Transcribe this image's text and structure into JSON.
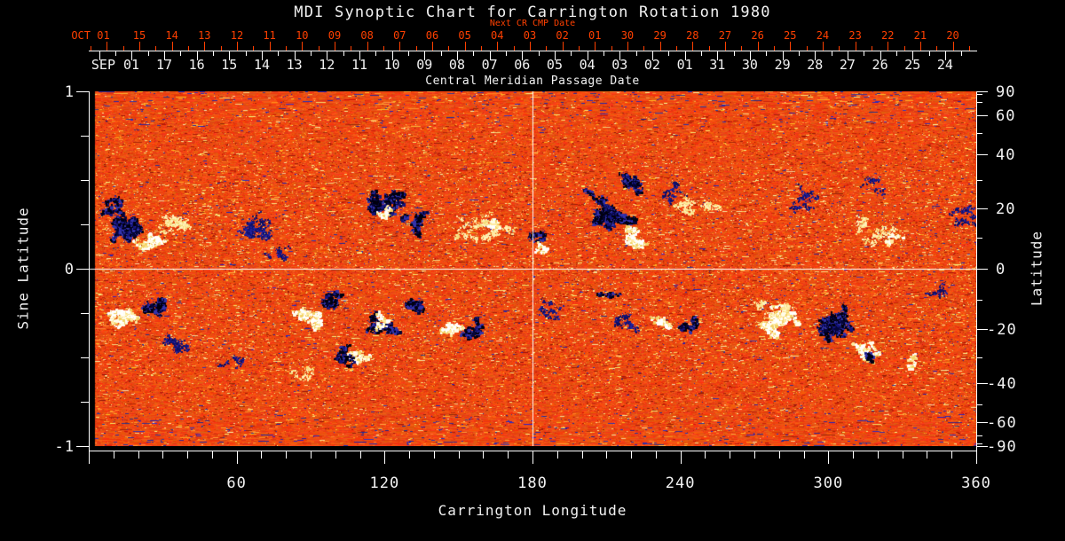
{
  "title": "MDI Synoptic Chart for Carrington Rotation 1980",
  "colors": {
    "background": "#000000",
    "axis": "#ffffff",
    "accent_orange": "#ff4000",
    "base_orange": "#e8481a",
    "negative_polarity": "#000020",
    "positive_polarity": "#ffffff"
  },
  "top_axis": {
    "next_cr_label": "Next CR CMP Date",
    "next_cr_edge_label": "OCT 01",
    "next_cr_days": [
      "15",
      "14",
      "13",
      "12",
      "11",
      "10",
      "09",
      "08",
      "07",
      "06",
      "05",
      "04",
      "03",
      "02",
      "01",
      "30",
      "29",
      "28",
      "27",
      "26",
      "25",
      "24",
      "23",
      "22",
      "21",
      "20"
    ],
    "cmp_edge_label": "SEP 01",
    "cmp_days": [
      "17",
      "16",
      "15",
      "14",
      "13",
      "12",
      "11",
      "10",
      "09",
      "08",
      "07",
      "06",
      "05",
      "04",
      "03",
      "02",
      "01",
      "31",
      "30",
      "29",
      "28",
      "27",
      "26",
      "25",
      "24"
    ],
    "cmp_label": "Central Meridian Passage Date"
  },
  "left_axis": {
    "label": "Sine Latitude",
    "ticks": [
      {
        "label": "1",
        "sine": 1
      },
      {
        "label": "0",
        "sine": 0
      },
      {
        "label": "-1",
        "sine": -1
      }
    ]
  },
  "right_axis": {
    "label": "Latitude",
    "ticks": [
      {
        "label": "90",
        "lat": 90
      },
      {
        "label": "60",
        "lat": 60
      },
      {
        "label": "40",
        "lat": 40
      },
      {
        "label": "20",
        "lat": 20
      },
      {
        "label": "0",
        "lat": 0
      },
      {
        "label": "-20",
        "lat": -20
      },
      {
        "label": "-40",
        "lat": -40
      },
      {
        "label": "-60",
        "lat": -60
      },
      {
        "label": "-90",
        "lat": -90
      }
    ]
  },
  "bottom_axis": {
    "label": "Carrington Longitude",
    "ticks": [
      {
        "label": "60",
        "lon": 60
      },
      {
        "label": "120",
        "lon": 120
      },
      {
        "label": "180",
        "lon": 180
      },
      {
        "label": "240",
        "lon": 240
      },
      {
        "label": "300",
        "lon": 300
      },
      {
        "label": "360",
        "lon": 360
      }
    ]
  },
  "chart_data": {
    "type": "heatmap",
    "title": "MDI Synoptic Chart for Carrington Rotation 1980",
    "x_axis": {
      "name": "Carrington Longitude",
      "range": [
        0,
        360
      ],
      "major_tick": 60,
      "minor_tick": 10
    },
    "y_axis": {
      "name": "Sine Latitude",
      "range": [
        -1,
        1
      ],
      "minor_tick": 0.25
    },
    "y_axis_secondary": {
      "name": "Latitude",
      "range": [
        -90,
        90
      ],
      "labeled": [
        90,
        60,
        40,
        20,
        0,
        -20,
        -40,
        -60,
        -90
      ],
      "minor_tick_deg": 10
    },
    "crosshair": {
      "longitude": 180,
      "sine_latitude": 0
    },
    "data_gap": {
      "lon_start": 0,
      "lon_end": 2.5
    },
    "colormap": "quiet sun rendered red-orange noise; negative magnetic polarity black with blue fringe; positive polarity white with yellow fringe",
    "active_regions": [
      {
        "lon": 16.2,
        "sine_lat": 0.24,
        "polarity": "neg",
        "size": 55,
        "density": 0.65
      },
      {
        "lon": 7.2,
        "sine_lat": 0.365,
        "polarity": "neg",
        "size": 25,
        "density": 0.5
      },
      {
        "lon": 20.9,
        "sine_lat": 0.155,
        "polarity": "pos",
        "size": 30,
        "density": 0.55
      },
      {
        "lon": 34.2,
        "sine_lat": 0.265,
        "polarity": "pos",
        "size": 60,
        "density": 0.25
      },
      {
        "lon": 66.6,
        "sine_lat": 0.205,
        "polarity": "neg",
        "size": 60,
        "density": 0.3
      },
      {
        "lon": 79.0,
        "sine_lat": 0.065,
        "polarity": "neg",
        "size": 30,
        "density": 0.25
      },
      {
        "lon": 121.7,
        "sine_lat": 0.375,
        "polarity": "neg",
        "size": 48,
        "density": 0.6
      },
      {
        "lon": 133.0,
        "sine_lat": 0.265,
        "polarity": "neg",
        "size": 30,
        "density": 0.35
      },
      {
        "lon": 119.9,
        "sine_lat": 0.325,
        "polarity": "pos",
        "size": 16,
        "density": 0.75
      },
      {
        "lon": 160.2,
        "sine_lat": 0.215,
        "polarity": "pos",
        "size": 70,
        "density": 0.22
      },
      {
        "lon": 161.6,
        "sine_lat": 0.245,
        "polarity": "pos",
        "size": 18,
        "density": 0.5
      },
      {
        "lon": 180.7,
        "sine_lat": 0.185,
        "polarity": "neg",
        "size": 16,
        "density": 0.6
      },
      {
        "lon": 182.5,
        "sine_lat": 0.125,
        "polarity": "pos",
        "size": 12,
        "density": 0.5
      },
      {
        "lon": 211.7,
        "sine_lat": 0.315,
        "polarity": "neg",
        "size": 75,
        "density": 0.7
      },
      {
        "lon": 220.3,
        "sine_lat": 0.49,
        "polarity": "neg",
        "size": 40,
        "density": 0.4
      },
      {
        "lon": 221.8,
        "sine_lat": 0.195,
        "polarity": "pos",
        "size": 30,
        "density": 0.8
      },
      {
        "lon": 244.1,
        "sine_lat": 0.34,
        "polarity": "pos",
        "size": 45,
        "density": 0.3
      },
      {
        "lon": 235.8,
        "sine_lat": 0.44,
        "polarity": "neg",
        "size": 30,
        "density": 0.25
      },
      {
        "lon": 289.8,
        "sine_lat": 0.39,
        "polarity": "neg",
        "size": 45,
        "density": 0.18
      },
      {
        "lon": 318.6,
        "sine_lat": 0.205,
        "polarity": "pos",
        "size": 55,
        "density": 0.22
      },
      {
        "lon": 324.0,
        "sine_lat": 0.175,
        "polarity": "pos",
        "size": 10,
        "density": 0.5
      },
      {
        "lon": 318.6,
        "sine_lat": 0.465,
        "polarity": "neg",
        "size": 35,
        "density": 0.2
      },
      {
        "lon": 354.6,
        "sine_lat": 0.29,
        "polarity": "neg",
        "size": 40,
        "density": 0.3
      },
      {
        "lon": 12.9,
        "sine_lat": -0.26,
        "polarity": "pos",
        "size": 35,
        "density": 0.7
      },
      {
        "lon": 25.9,
        "sine_lat": -0.2,
        "polarity": "neg",
        "size": 30,
        "density": 0.6
      },
      {
        "lon": 34.2,
        "sine_lat": -0.435,
        "polarity": "neg",
        "size": 50,
        "density": 0.25
      },
      {
        "lon": 58.3,
        "sine_lat": -0.525,
        "polarity": "neg",
        "size": 30,
        "density": 0.18
      },
      {
        "lon": 98.3,
        "sine_lat": -0.185,
        "polarity": "neg",
        "size": 26,
        "density": 0.8
      },
      {
        "lon": 90.0,
        "sine_lat": -0.27,
        "polarity": "pos",
        "size": 30,
        "density": 0.65
      },
      {
        "lon": 107.3,
        "sine_lat": -0.505,
        "polarity": "pos",
        "size": 22,
        "density": 0.6
      },
      {
        "lon": 101.5,
        "sine_lat": -0.49,
        "polarity": "neg",
        "size": 20,
        "density": 0.7
      },
      {
        "lon": 88.2,
        "sine_lat": -0.585,
        "polarity": "pos",
        "size": 30,
        "density": 0.25
      },
      {
        "lon": 117.7,
        "sine_lat": -0.325,
        "polarity": "neg",
        "size": 34,
        "density": 0.65
      },
      {
        "lon": 118.8,
        "sine_lat": -0.305,
        "polarity": "pos",
        "size": 18,
        "density": 0.5
      },
      {
        "lon": 130.0,
        "sine_lat": -0.205,
        "polarity": "neg",
        "size": 28,
        "density": 0.55
      },
      {
        "lon": 148.0,
        "sine_lat": -0.335,
        "polarity": "pos",
        "size": 22,
        "density": 0.5
      },
      {
        "lon": 155.5,
        "sine_lat": -0.335,
        "polarity": "neg",
        "size": 26,
        "density": 0.6
      },
      {
        "lon": 189.0,
        "sine_lat": -0.21,
        "polarity": "neg",
        "size": 40,
        "density": 0.2
      },
      {
        "lon": 211.7,
        "sine_lat": -0.135,
        "polarity": "neg",
        "size": 15,
        "density": 0.4
      },
      {
        "lon": 217.8,
        "sine_lat": -0.3,
        "polarity": "neg",
        "size": 35,
        "density": 0.3
      },
      {
        "lon": 235.1,
        "sine_lat": -0.31,
        "polarity": "pos",
        "size": 18,
        "density": 0.6
      },
      {
        "lon": 242.6,
        "sine_lat": -0.315,
        "polarity": "neg",
        "size": 20,
        "density": 0.6
      },
      {
        "lon": 280.1,
        "sine_lat": -0.285,
        "polarity": "pos",
        "size": 45,
        "density": 0.75
      },
      {
        "lon": 277.9,
        "sine_lat": -0.21,
        "polarity": "pos",
        "size": 40,
        "density": 0.25
      },
      {
        "lon": 300.6,
        "sine_lat": -0.31,
        "polarity": "neg",
        "size": 52,
        "density": 0.7
      },
      {
        "lon": 313.9,
        "sine_lat": -0.475,
        "polarity": "pos",
        "size": 28,
        "density": 0.5
      },
      {
        "lon": 315.4,
        "sine_lat": -0.49,
        "polarity": "neg",
        "size": 12,
        "density": 0.7
      },
      {
        "lon": 333.7,
        "sine_lat": -0.515,
        "polarity": "pos",
        "size": 14,
        "density": 0.55
      },
      {
        "lon": 344.9,
        "sine_lat": -0.105,
        "polarity": "neg",
        "size": 25,
        "density": 0.3
      }
    ]
  }
}
